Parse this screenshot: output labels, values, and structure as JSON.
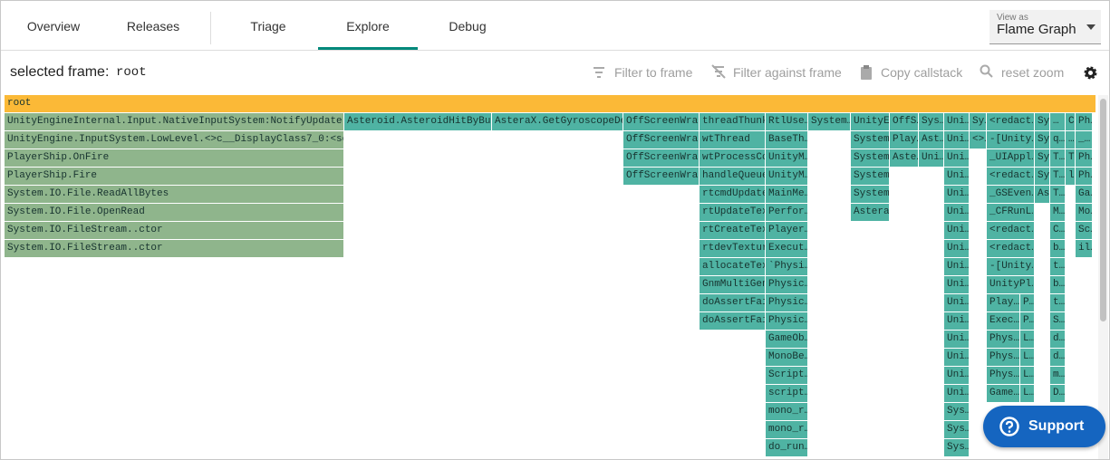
{
  "nav": {
    "tabs": [
      "Overview",
      "Releases",
      "Triage",
      "Explore",
      "Debug"
    ]
  },
  "view_selector": {
    "label": "View as",
    "value": "Flame Graph"
  },
  "toolbar": {
    "selected_label": "selected frame:",
    "selected_value": "root",
    "actions": [
      "Filter to frame",
      "Filter against frame",
      "Copy callstack",
      "reset zoom"
    ]
  },
  "flame_graph": {
    "root": "root",
    "columns": [
      [
        "UnityEngineInternal.Input.NativeInputSystem:NotifyUpdate",
        "UnityEngine.InputSystem.LowLevel.<>c__DisplayClass7_0:<set_on…",
        "PlayerShip.OnFire",
        "PlayerShip.Fire",
        "System.IO.File.ReadAllBytes",
        "System.IO.File.OpenRead",
        "System.IO.FileStream..ctor",
        "System.IO.FileStream..ctor"
      ],
      [
        "Asteroid.AsteroidHitByBull…"
      ],
      [
        "AsteraX.GetGyroscopeDev…"
      ],
      [
        "OffScreenWrap…",
        "OffScreenWrap…",
        "OffScreenWrap…",
        "OffScreenWrap…"
      ],
      [
        "threadThunk",
        "wtThread",
        "wtProcessCo…",
        "handleQueue…",
        "rtcmdUpdate…",
        "rtUpdateTex…",
        "rtCreateTex…",
        "rtdevTextur…",
        "allocateTex…",
        "GnmMultiGen…",
        "doAssertFai…",
        "doAssertFai…"
      ],
      [
        "RtlUse…",
        "BaseTh…",
        "UnityM…",
        "UnityM…",
        "MainMe…",
        "Perfor…",
        "Player…",
        "Execut…",
        "`Physi…",
        "Physic…",
        "Physic…",
        "Physic…",
        "GameOb…",
        "MonoBe…",
        "Script…",
        "script…",
        "mono_r…",
        "mono_r…",
        "do_run…"
      ],
      [
        "System…"
      ],
      [
        "UnityE…",
        "System…",
        "System…",
        "System…",
        "System…",
        "Astera…"
      ],
      [
        "OffS…",
        "Play…",
        "Aste…"
      ],
      [
        "Sys…",
        "Ast…",
        "Uni…"
      ],
      [
        "Uni…",
        "Uni…",
        "Uni…",
        "Uni…",
        "Uni…",
        "Uni…",
        "Uni…",
        "Uni…",
        "Uni…",
        "Uni…",
        "Uni…",
        "Uni…",
        "Uni…",
        "Uni…",
        "Uni…",
        "Uni…",
        "Sys…",
        "Sys…",
        "Sys…"
      ],
      [
        "Sy…",
        "<>…"
      ],
      [
        "<redact…",
        "-[Unity…",
        "_UIAppl…",
        "<redact…",
        "_GSEven…",
        "_CFRunL…",
        "<redact…",
        "<redact…",
        "-[Unity…",
        "UnityPl…"
      ],
      [
        "Play…",
        "Exec…",
        "Phys…",
        "Phys…",
        "Phys…",
        "Game…"
      ],
      [
        "P…",
        "P…",
        "L…",
        "L…",
        "L…",
        "L…"
      ],
      [
        "Sy…",
        "Sy…",
        "Sy…",
        "Sy…",
        "As…"
      ],
      [
        "…",
        "q…",
        "T…",
        "T…",
        "T…",
        "M…",
        "C…",
        "b…",
        "t…",
        "b…",
        "t…",
        "S…",
        "d…",
        "d…",
        "m…",
        "D…"
      ],
      [
        "C…",
        "…",
        "T…",
        "l…"
      ],
      [
        "Ph…",
        "_…",
        "Ph…",
        "Ph…",
        "Ga…",
        "Mo…",
        "Sc…",
        "il…"
      ]
    ]
  },
  "support": "Support"
}
